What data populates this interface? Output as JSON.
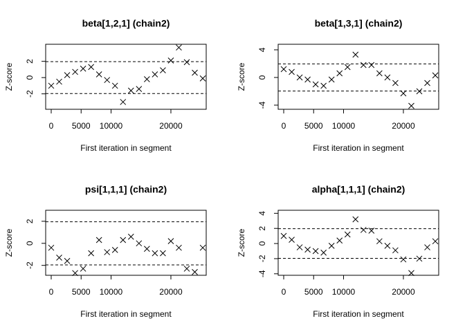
{
  "chart_data": [
    {
      "type": "scatter",
      "title": "beta[1,2,1] (chain2)",
      "xlabel": "First iteration in segment",
      "ylabel": "Z-score",
      "x": [
        0,
        1333,
        2666,
        3999,
        5332,
        6665,
        7998,
        9331,
        10664,
        11997,
        13330,
        14663,
        15996,
        17329,
        18662,
        19995,
        21328,
        22661,
        23994,
        25327
      ],
      "values": [
        -1.0,
        -0.5,
        0.3,
        0.7,
        1.1,
        1.3,
        0.4,
        -0.3,
        -1.0,
        -3.0,
        -1.6,
        -1.4,
        -0.2,
        0.4,
        0.9,
        2.1,
        3.7,
        1.9,
        0.6,
        -0.1
      ],
      "xlim": [
        -925,
        25900
      ],
      "xticks": [
        0,
        5000,
        10000,
        20000
      ],
      "ylim": [
        -3.9,
        4.1
      ],
      "yticks": [
        -2,
        0,
        2
      ],
      "reference_lines": [
        -1.96,
        1.96
      ],
      "color": "#000000"
    },
    {
      "type": "scatter",
      "title": "beta[1,3,1] (chain2)",
      "xlabel": "First iteration in segment",
      "ylabel": "Z-score",
      "x": [
        0,
        1333,
        2666,
        3999,
        5332,
        6665,
        7998,
        9331,
        10664,
        11997,
        13330,
        14663,
        15996,
        17329,
        18662,
        19995,
        21328,
        22661,
        23994,
        25327
      ],
      "values": [
        1.2,
        0.8,
        0.0,
        -0.3,
        -1.0,
        -1.2,
        -0.3,
        0.6,
        1.5,
        3.3,
        1.8,
        1.8,
        0.6,
        0.0,
        -0.8,
        -2.3,
        -4.1,
        -2.0,
        -0.8,
        0.3
      ],
      "xlim": [
        -925,
        25900
      ],
      "xticks": [
        0,
        5000,
        10000,
        20000
      ],
      "ylim": [
        -4.6,
        4.8
      ],
      "yticks": [
        -4,
        0,
        4
      ],
      "reference_lines": [
        -1.96,
        1.96
      ],
      "color": "#000000"
    },
    {
      "type": "scatter",
      "title": "psi[1,1,1] (chain2)",
      "xlabel": "First iteration in segment",
      "ylabel": "Z-score",
      "x": [
        0,
        1333,
        2666,
        3999,
        5332,
        6665,
        7998,
        9331,
        10664,
        11997,
        13330,
        14663,
        15996,
        17329,
        18662,
        19995,
        21328,
        22661,
        23994,
        25327
      ],
      "values": [
        -0.4,
        -1.3,
        -1.6,
        -2.7,
        -2.3,
        -0.9,
        0.3,
        -0.8,
        -0.6,
        0.3,
        0.6,
        0.0,
        -0.5,
        -0.9,
        -0.9,
        0.2,
        -0.4,
        -2.3,
        -2.6,
        -0.4
      ],
      "xlim": [
        -925,
        25900
      ],
      "xticks": [
        0,
        5000,
        10000,
        20000
      ],
      "ylim": [
        -2.9,
        3.0
      ],
      "yticks": [
        -2,
        0,
        2
      ],
      "reference_lines": [
        -1.96,
        1.96
      ],
      "color": "#000000"
    },
    {
      "type": "scatter",
      "title": "alpha[1,1,1] (chain2)",
      "xlabel": "First iteration in segment",
      "ylabel": "Z-score",
      "x": [
        0,
        1333,
        2666,
        3999,
        5332,
        6665,
        7998,
        9331,
        10664,
        11997,
        13330,
        14663,
        15996,
        17329,
        18662,
        19995,
        21328,
        22661,
        23994,
        25327
      ],
      "values": [
        1.0,
        0.5,
        -0.5,
        -0.8,
        -1.0,
        -1.2,
        -0.3,
        0.4,
        1.2,
        3.2,
        1.8,
        1.7,
        0.3,
        -0.3,
        -0.9,
        -2.1,
        -3.9,
        -2.0,
        -0.5,
        0.3
      ],
      "xlim": [
        -925,
        25900
      ],
      "xticks": [
        0,
        5000,
        10000,
        20000
      ],
      "ylim": [
        -4.2,
        4.4
      ],
      "yticks": [
        -4,
        -2,
        0,
        2,
        4
      ],
      "reference_lines": [
        -1.96,
        1.96
      ],
      "color": "#000000"
    }
  ]
}
